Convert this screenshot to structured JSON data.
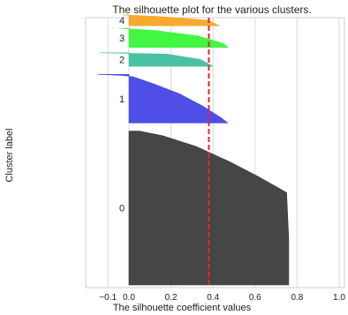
{
  "chart_data": {
    "type": "area",
    "title": "The silhouette plot for the various clusters.",
    "xlabel": "The silhouette coefficient values",
    "ylabel": "Cluster label",
    "xlim": [
      -0.1,
      1.0
    ],
    "ylim": [
      0,
      100
    ],
    "x_ticks": [
      {
        "value": -0.1,
        "label": "−0.1"
      },
      {
        "value": 0.0,
        "label": "0.0"
      },
      {
        "value": 0.2,
        "label": "0.2"
      },
      {
        "value": 0.4,
        "label": "0.4"
      },
      {
        "value": 0.6,
        "label": "0.6"
      },
      {
        "value": 0.8,
        "label": "0.8"
      },
      {
        "value": 1.0,
        "label": "1.0"
      }
    ],
    "grid": true,
    "average_silhouette": 0.38,
    "average_line_color": "#e8262b",
    "clusters": [
      {
        "label": "0",
        "color": "#3c3c3c",
        "y_start": 1,
        "y_end": 58,
        "profile": [
          [
            0,
            0.76
          ],
          [
            0.3,
            0.76
          ],
          [
            0.6,
            0.75
          ],
          [
            0.7,
            0.62
          ],
          [
            0.8,
            0.48
          ],
          [
            0.9,
            0.32
          ],
          [
            0.97,
            0.16
          ],
          [
            1.0,
            0.05
          ]
        ]
      },
      {
        "label": "1",
        "color": "#4646e6",
        "y_start": 61,
        "y_end": 79,
        "profile": [
          [
            0,
            0.47
          ],
          [
            0.1,
            0.44
          ],
          [
            0.35,
            0.35
          ],
          [
            0.6,
            0.24
          ],
          [
            0.8,
            0.12
          ],
          [
            0.95,
            0.02
          ],
          [
            0.98,
            -0.03
          ],
          [
            1.0,
            -0.15
          ]
        ]
      },
      {
        "label": "2",
        "color": "#3fbf9e",
        "y_start": 82,
        "y_end": 87,
        "profile": [
          [
            0,
            0.4
          ],
          [
            0.5,
            0.34
          ],
          [
            0.9,
            0.18
          ],
          [
            1.0,
            -0.14
          ]
        ]
      },
      {
        "label": "3",
        "color": "#3af53a",
        "y_start": 89,
        "y_end": 96,
        "profile": [
          [
            0,
            0.47
          ],
          [
            0.2,
            0.45
          ],
          [
            0.6,
            0.33
          ],
          [
            0.9,
            0.12
          ],
          [
            1.0,
            -0.04
          ]
        ]
      },
      {
        "label": "4",
        "color": "#f5a623",
        "y_start": 97,
        "y_end": 101,
        "profile": [
          [
            0,
            0.43
          ],
          [
            0.5,
            0.38
          ],
          [
            0.85,
            0.15
          ],
          [
            1.0,
            -0.03
          ]
        ]
      }
    ]
  }
}
